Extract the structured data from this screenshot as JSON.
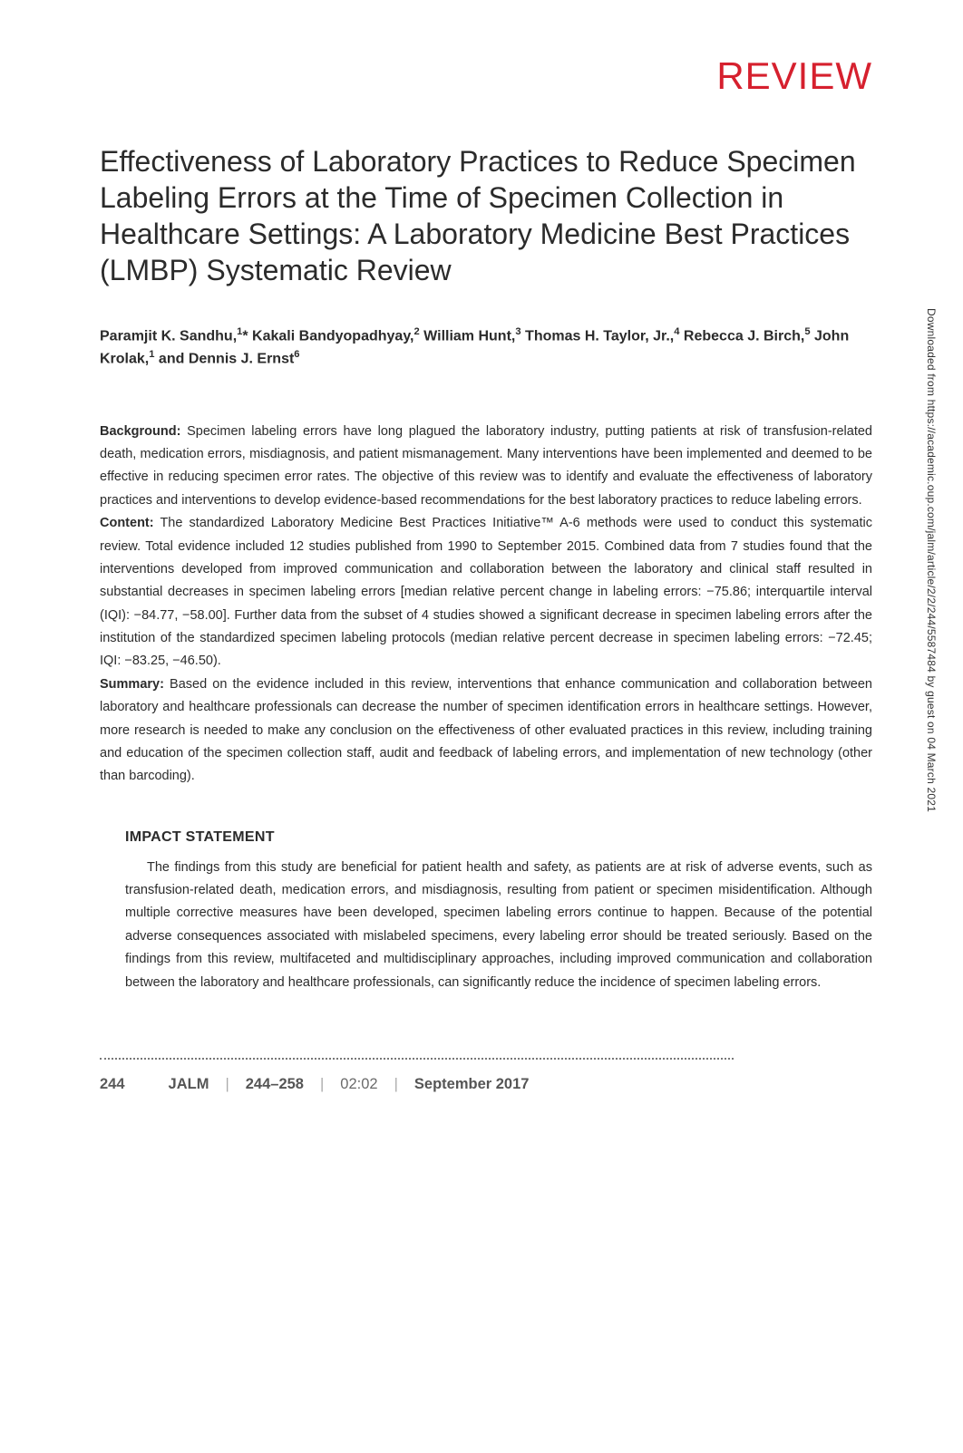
{
  "header": {
    "review": "REVIEW"
  },
  "title": "Effectiveness of Laboratory Practices to Reduce Specimen Labeling Errors at the Time of Specimen Collection in Healthcare Settings: A Laboratory Medicine Best Practices (LMBP) Systematic Review",
  "authors_html": "Paramjit K. Sandhu,<sup>1</sup>* Kakali Bandyopadhyay,<sup>2</sup> William Hunt,<sup>3</sup> Thomas H. Taylor, Jr.,<sup>4</sup> Rebecca J. Birch,<sup>5</sup> John Krolak,<sup>1</sup> and Dennis J. Ernst<sup>6</sup>",
  "abstract": {
    "background_label": "Background:",
    "background_text": " Specimen labeling errors have long plagued the laboratory industry, putting patients at risk of transfusion-related death, medication errors, misdiagnosis, and patient mismanagement. Many interventions have been implemented and deemed to be effective in reducing specimen error rates. The objective of this review was to identify and evaluate the effectiveness of laboratory practices and interventions to develop evidence-based recommendations for the best laboratory practices to reduce labeling errors.",
    "content_label": "Content:",
    "content_text": " The standardized Laboratory Medicine Best Practices Initiative™ A-6 methods were used to conduct this systematic review. Total evidence included 12 studies published from 1990 to September 2015. Combined data from 7 studies found that the interventions developed from improved communication and collaboration between the laboratory and clinical staff resulted in substantial decreases in specimen labeling errors [median relative percent change in labeling errors: −75.86; interquartile interval (IQI): −84.77, −58.00]. Further data from the subset of 4 studies showed a significant decrease in specimen labeling errors after the institution of the standardized specimen labeling protocols (median relative percent decrease in specimen labeling errors: −72.45; IQI: −83.25, −46.50).",
    "summary_label": "Summary:",
    "summary_text": " Based on the evidence included in this review, interventions that enhance communication and collaboration between laboratory and healthcare professionals can decrease the number of specimen identification errors in healthcare settings. However, more research is needed to make any conclusion on the effectiveness of other evaluated practices in this review, including training and education of the specimen collection staff, audit and feedback of labeling errors, and implementation of new technology (other than barcoding)."
  },
  "impact": {
    "heading": "IMPACT STATEMENT",
    "body": "The findings from this study are beneficial for patient health and safety, as patients are at risk of adverse events, such as transfusion-related death, medication errors, and misdiagnosis, resulting from patient or specimen misidentification. Although multiple corrective measures have been developed, specimen labeling errors continue to happen. Because of the potential adverse consequences associated with mislabeled specimens, every labeling error should be treated seriously. Based on the findings from this review, multifaceted and multidisciplinary approaches, including improved communication and collaboration between the laboratory and healthcare professionals, can significantly reduce the incidence of specimen labeling errors."
  },
  "footer": {
    "page_num": "244",
    "journal": "JALM",
    "pages": "244–258",
    "vol_issue": "02:02",
    "date": "September 2017"
  },
  "sidebar": "Downloaded from https://academic.oup.com/jalm/article/2/2/244/5587484 by guest on 04 March 2021",
  "colors": {
    "accent": "#d6202e",
    "text": "#2b2b2b"
  }
}
